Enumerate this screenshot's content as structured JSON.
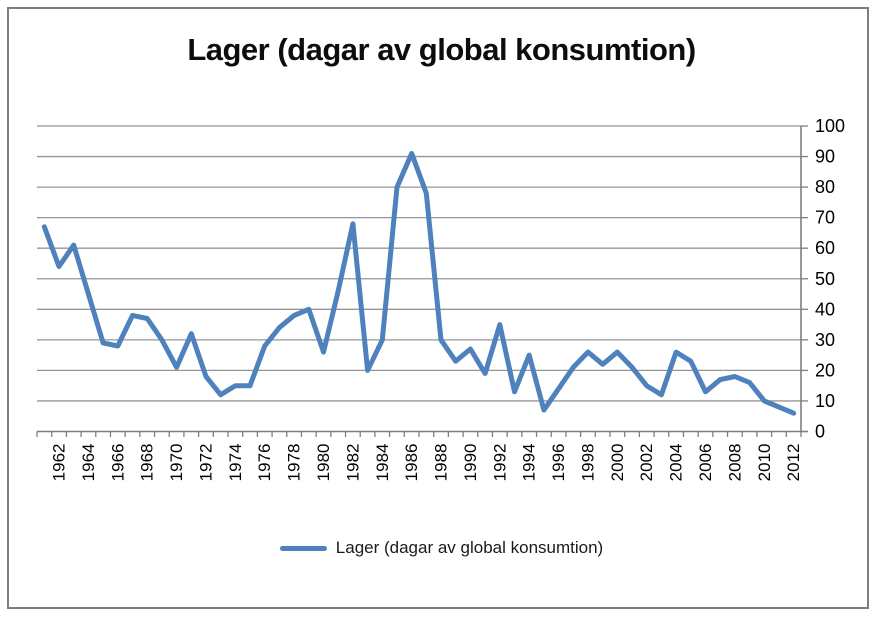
{
  "chart_data": {
    "type": "line",
    "title": "Lager (dagar av global konsumtion)",
    "legend_label": "Lager (dagar av global konsumtion)",
    "xlabel": "",
    "ylabel": "",
    "ylim": [
      0,
      100
    ],
    "yticks": [
      0,
      10,
      20,
      30,
      40,
      50,
      60,
      70,
      80,
      90,
      100
    ],
    "ytick_labels": [
      "0",
      "10",
      "20",
      "30",
      "40",
      "50",
      "60",
      "70",
      "80",
      "90",
      "100"
    ],
    "yaxis_side": "right",
    "grid": "horizontal",
    "legend_position": "bottom",
    "xtick_labels": [
      "1962",
      "1964",
      "1966",
      "1968",
      "1970",
      "1972",
      "1974",
      "1976",
      "1978",
      "1980",
      "1982",
      "1984",
      "1986",
      "1988",
      "1990",
      "1992",
      "1994",
      "1996",
      "1998",
      "2000",
      "2002",
      "2004",
      "2006",
      "2008",
      "2010",
      "2012"
    ],
    "x": [
      1961,
      1962,
      1963,
      1964,
      1965,
      1966,
      1967,
      1968,
      1969,
      1970,
      1971,
      1972,
      1973,
      1974,
      1975,
      1976,
      1977,
      1978,
      1979,
      1980,
      1981,
      1982,
      1983,
      1984,
      1985,
      1986,
      1987,
      1988,
      1989,
      1990,
      1991,
      1992,
      1993,
      1994,
      1995,
      1996,
      1997,
      1998,
      1999,
      2000,
      2001,
      2002,
      2003,
      2004,
      2005,
      2006,
      2007,
      2008,
      2009,
      2010,
      2011,
      2012
    ],
    "series": [
      {
        "name": "Lager (dagar av global konsumtion)",
        "values": [
          67,
          54,
          61,
          45,
          29,
          28,
          38,
          37,
          30,
          21,
          32,
          18,
          12,
          15,
          15,
          28,
          34,
          38,
          40,
          26,
          46,
          68,
          20,
          30,
          80,
          91,
          78,
          30,
          23,
          27,
          19,
          35,
          13,
          25,
          7,
          14,
          21,
          26,
          22,
          26,
          21,
          15,
          12,
          26,
          23,
          13,
          17,
          18,
          16,
          10,
          8,
          6
        ]
      }
    ],
    "colors": {
      "line": "#4f81bd",
      "gridline": "#959595",
      "axis": "#7f7f7f",
      "tick_text": "#000000",
      "title_text": "#0d0d0d",
      "frame_border": "#7f7f7f"
    }
  },
  "legend": {
    "label": "Lager (dagar av global konsumtion)"
  }
}
